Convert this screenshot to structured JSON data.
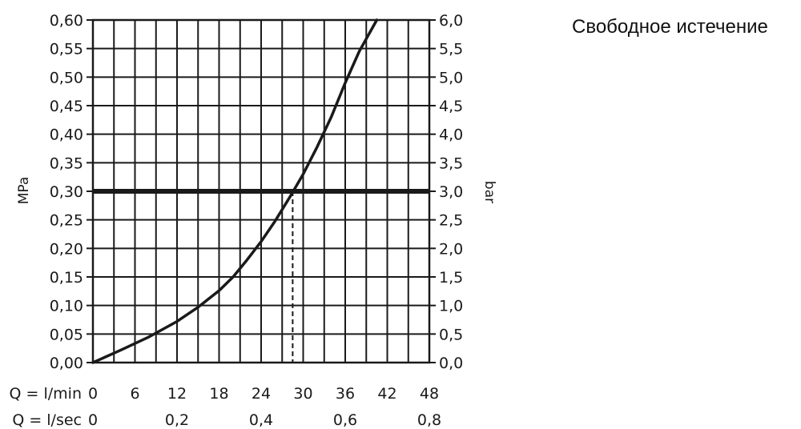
{
  "caption": "Свободное истечение",
  "chart_data": {
    "type": "line",
    "title": "",
    "ylabel_left": "MPa",
    "ylabel_right": "bar",
    "xlabel_min": "Q = l/min",
    "xlabel_sec": "Q = l/sec",
    "x_ticks": [
      "0",
      "6",
      "12",
      "18",
      "24",
      "30",
      "36",
      "42",
      "48"
    ],
    "x_sec_ticks": [
      {
        "x": 0,
        "label": "0"
      },
      {
        "x": 12,
        "label": "0,2"
      },
      {
        "x": 24,
        "label": "0,4"
      },
      {
        "x": 36,
        "label": "0,6"
      },
      {
        "x": 48,
        "label": "0,8"
      }
    ],
    "y_left_ticks": [
      "0,00",
      "0,05",
      "0,10",
      "0,15",
      "0,20",
      "0,25",
      "0,30",
      "0,35",
      "0,40",
      "0,45",
      "0,50",
      "0,55",
      "0,60"
    ],
    "y_right_ticks": [
      "0,0",
      "0,5",
      "1,0",
      "1,5",
      "2,0",
      "2,5",
      "3,0",
      "3,5",
      "4,0",
      "4,5",
      "5,0",
      "5,5",
      "6,0"
    ],
    "xlim": [
      0,
      48
    ],
    "ylim": [
      0,
      0.6
    ],
    "grid": true,
    "x_step": 3,
    "y_step": 0.05,
    "series": [
      {
        "x": [
          0,
          4,
          8,
          12,
          15,
          18,
          20,
          22,
          24,
          26,
          28,
          30,
          32,
          34,
          36,
          38,
          40.5
        ],
        "y": [
          0,
          0.022,
          0.045,
          0.072,
          0.097,
          0.126,
          0.15,
          0.18,
          0.212,
          0.248,
          0.288,
          0.33,
          0.378,
          0.43,
          0.49,
          0.545,
          0.6
        ]
      }
    ],
    "reference_line": {
      "y": 0.3
    },
    "operating_point": {
      "x": 28.5,
      "y": 0.3
    },
    "colors": {
      "line": "#1a1a1a",
      "grid": "#1a1a1a"
    }
  }
}
